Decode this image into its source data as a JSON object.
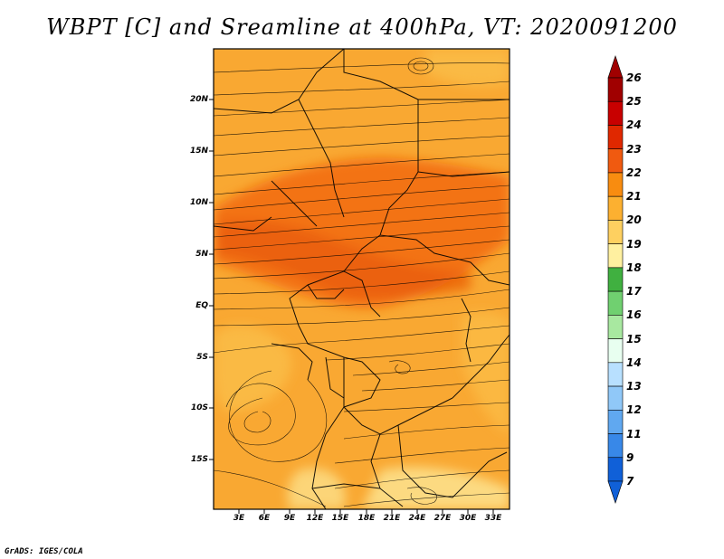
{
  "title": "WBPT [C] and Sreamline at 400hPa, VT: 2020091200",
  "credit": "GrADS: IGES/COLA",
  "lat_labels": [
    "20N",
    "15N",
    "10N",
    "5N",
    "EQ",
    "5S",
    "10S",
    "15S"
  ],
  "lon_labels": [
    "3E",
    "6E",
    "9E",
    "12E",
    "15E",
    "18E",
    "21E",
    "24E",
    "27E",
    "30E",
    "33E"
  ],
  "colorbar": {
    "labels": [
      "26",
      "25",
      "24",
      "23",
      "22",
      "21",
      "20",
      "19",
      "18",
      "17",
      "16",
      "15",
      "14",
      "13",
      "12",
      "11",
      "9",
      "7"
    ],
    "colors": [
      "#a00000",
      "#c80000",
      "#e02800",
      "#f05a10",
      "#f88c10",
      "#fcb030",
      "#fed060",
      "#fff0a0",
      "#40b040",
      "#70d070",
      "#a8e8a0",
      "#e8fff0",
      "#b8e0ff",
      "#90c8f8",
      "#60a8f0",
      "#3888e8",
      "#1060d8"
    ]
  },
  "map": {
    "base_color": "#f9a832",
    "hot_band_color": "#f26a10",
    "warm_color": "#fbbb45",
    "cool_color": "#fde08a",
    "streamline_color": "#000000"
  }
}
